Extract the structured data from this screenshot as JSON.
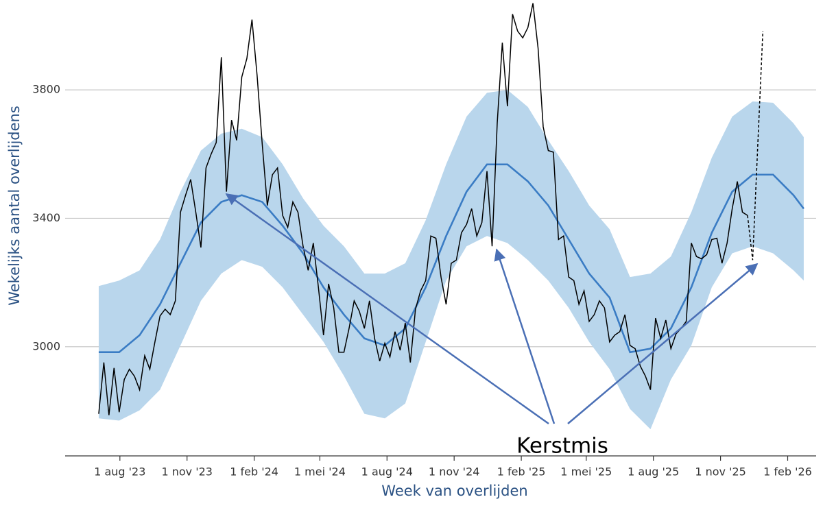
{
  "chart_data": {
    "type": "line",
    "ylabel": "Wekelijks aantal overlijdens",
    "xlabel": "Week van overlijden",
    "annotation": "Kerstmis",
    "xlim": [
      "2023-05-18",
      "2026-03-12"
    ],
    "xticks": [
      {
        "value": "2023-08-01",
        "label": "1 aug '23"
      },
      {
        "value": "2023-11-01",
        "label": "1 nov '23"
      },
      {
        "value": "2024-02-01",
        "label": "1 feb '24"
      },
      {
        "value": "2024-05-01",
        "label": "1 mei '24"
      },
      {
        "value": "2024-08-01",
        "label": "1 aug '24"
      },
      {
        "value": "2024-11-01",
        "label": "1 nov '24"
      },
      {
        "value": "2025-02-01",
        "label": "1 feb '25"
      },
      {
        "value": "2025-05-01",
        "label": "1 mei '25"
      },
      {
        "value": "2025-08-01",
        "label": "1 aug '25"
      },
      {
        "value": "2025-11-01",
        "label": "1 nov '25"
      },
      {
        "value": "2026-02-01",
        "label": "1 feb '26"
      }
    ],
    "ylim": [
      2660,
      4080
    ],
    "yticks": [
      3000,
      3400,
      3800
    ],
    "grid": true,
    "baseline": {
      "color": "#3a7cc4",
      "band_color": "#b9d6ec",
      "x": [
        "2023-07-03",
        "2023-07-31",
        "2023-08-28",
        "2023-09-25",
        "2023-10-23",
        "2023-11-20",
        "2023-12-18",
        "2024-01-15",
        "2024-02-12",
        "2024-03-11",
        "2024-04-08",
        "2024-05-06",
        "2024-06-03",
        "2024-07-01",
        "2024-07-29",
        "2024-08-26",
        "2024-09-23",
        "2024-10-21",
        "2024-11-18",
        "2024-12-16",
        "2025-01-13",
        "2025-02-10",
        "2025-03-10",
        "2025-04-07",
        "2025-05-05",
        "2025-06-02",
        "2025-06-30",
        "2025-07-28",
        "2025-08-25",
        "2025-09-22",
        "2025-10-20",
        "2025-11-17",
        "2025-12-15",
        "2026-01-12",
        "2026-02-09",
        "2026-02-23"
      ],
      "values": [
        2983,
        2983,
        3036,
        3132,
        3260,
        3387,
        3451,
        3472,
        3451,
        3377,
        3291,
        3185,
        3100,
        3026,
        3004,
        3057,
        3185,
        3345,
        3483,
        3568,
        3568,
        3515,
        3440,
        3334,
        3228,
        3153,
        2983,
        2994,
        3057,
        3185,
        3355,
        3483,
        3536,
        3536,
        3472,
        3430
      ],
      "upper": [
        3189,
        3206,
        3238,
        3334,
        3483,
        3611,
        3664,
        3679,
        3653,
        3568,
        3462,
        3377,
        3313,
        3228,
        3228,
        3260,
        3394,
        3568,
        3717,
        3791,
        3800,
        3747,
        3643,
        3547,
        3440,
        3366,
        3217,
        3228,
        3281,
        3419,
        3589,
        3717,
        3764,
        3760,
        3696,
        3653
      ],
      "lower": [
        2777,
        2770,
        2802,
        2866,
        3004,
        3143,
        3228,
        3270,
        3249,
        3185,
        3100,
        3015,
        2909,
        2791,
        2777,
        2823,
        3015,
        3206,
        3313,
        3345,
        3323,
        3270,
        3206,
        3121,
        3015,
        2930,
        2806,
        2743,
        2898,
        3004,
        3185,
        3291,
        3313,
        3291,
        3238,
        3206
      ]
    },
    "series": [
      {
        "color": "#000000",
        "x": [
          "2023-07-03",
          "2023-07-10",
          "2023-07-17",
          "2023-07-24",
          "2023-07-31",
          "2023-08-07",
          "2023-08-14",
          "2023-08-21",
          "2023-08-28",
          "2023-09-04",
          "2023-09-11",
          "2023-09-18",
          "2023-09-25",
          "2023-10-02",
          "2023-10-09",
          "2023-10-16",
          "2023-10-23",
          "2023-10-30",
          "2023-11-06",
          "2023-11-13",
          "2023-11-20",
          "2023-11-27",
          "2023-12-04",
          "2023-12-11",
          "2023-12-18",
          "2023-12-25",
          "2024-01-01",
          "2024-01-08",
          "2024-01-15",
          "2024-01-22",
          "2024-01-29",
          "2024-02-05",
          "2024-02-12",
          "2024-02-19",
          "2024-02-26",
          "2024-03-04",
          "2024-03-11",
          "2024-03-18",
          "2024-03-25",
          "2024-04-01",
          "2024-04-08",
          "2024-04-15",
          "2024-04-22",
          "2024-04-29",
          "2024-05-06",
          "2024-05-13",
          "2024-05-20",
          "2024-05-27",
          "2024-06-03",
          "2024-06-10",
          "2024-06-17",
          "2024-06-24",
          "2024-07-01",
          "2024-07-08",
          "2024-07-15",
          "2024-07-22",
          "2024-07-29",
          "2024-08-05",
          "2024-08-12",
          "2024-08-19",
          "2024-08-26",
          "2024-09-02",
          "2024-09-09",
          "2024-09-16",
          "2024-09-23",
          "2024-09-30",
          "2024-10-07",
          "2024-10-14",
          "2024-10-21",
          "2024-10-28",
          "2024-11-04",
          "2024-11-11",
          "2024-11-18",
          "2024-11-25",
          "2024-12-02",
          "2024-12-09",
          "2024-12-16",
          "2024-12-23",
          "2024-12-30",
          "2025-01-06",
          "2025-01-13",
          "2025-01-20",
          "2025-01-27",
          "2025-02-03",
          "2025-02-10",
          "2025-02-17",
          "2025-02-24",
          "2025-03-03",
          "2025-03-10",
          "2025-03-17",
          "2025-03-24",
          "2025-03-31",
          "2025-04-07",
          "2025-04-14",
          "2025-04-21",
          "2025-04-28",
          "2025-05-05",
          "2025-05-12",
          "2025-05-19",
          "2025-05-26",
          "2025-06-02",
          "2025-06-09",
          "2025-06-16",
          "2025-06-23",
          "2025-06-30",
          "2025-07-07",
          "2025-07-14",
          "2025-07-21",
          "2025-07-28",
          "2025-08-04",
          "2025-08-11",
          "2025-08-18",
          "2025-08-25",
          "2025-09-01",
          "2025-09-08",
          "2025-09-15",
          "2025-09-22",
          "2025-09-29",
          "2025-10-06",
          "2025-10-13",
          "2025-10-20",
          "2025-10-27",
          "2025-11-03",
          "2025-11-10",
          "2025-11-17",
          "2025-11-24",
          "2025-12-01",
          "2025-12-08"
        ],
        "values": [
          2791,
          2951,
          2787,
          2934,
          2796,
          2898,
          2930,
          2908,
          2866,
          2972,
          2930,
          3015,
          3096,
          3117,
          3100,
          3143,
          3419,
          3472,
          3521,
          3419,
          3309,
          3557,
          3600,
          3636,
          3902,
          3483,
          3706,
          3643,
          3840,
          3898,
          4019,
          3845,
          3632,
          3440,
          3536,
          3557,
          3409,
          3372,
          3451,
          3419,
          3313,
          3238,
          3323,
          3185,
          3036,
          3196,
          3121,
          2983,
          2983,
          3057,
          3143,
          3111,
          3057,
          3143,
          3026,
          2955,
          3011,
          2968,
          3047,
          2989,
          3074,
          2951,
          3117,
          3174,
          3206,
          3345,
          3338,
          3217,
          3132,
          3260,
          3270,
          3355,
          3381,
          3430,
          3345,
          3387,
          3547,
          3313,
          3696,
          3947,
          3749,
          4036,
          3983,
          3962,
          3994,
          4070,
          3930,
          3685,
          3611,
          3606,
          3334,
          3345,
          3217,
          3206,
          3132,
          3174,
          3079,
          3100,
          3143,
          3121,
          3015,
          3036,
          3047,
          3100,
          3004,
          2994,
          2940,
          2909,
          2866,
          3089,
          3026,
          3083,
          2994,
          3040,
          3057,
          3079,
          3323,
          3281,
          3274,
          3287,
          3334,
          3338,
          3260,
          3323,
          3430,
          3515,
          3419,
          3409
        ]
      },
      {
        "color": "#000000",
        "dashed": true,
        "x": [
          "2025-12-08",
          "2025-12-15",
          "2025-12-29"
        ],
        "values": [
          3409,
          3270,
          3983
        ]
      }
    ]
  }
}
